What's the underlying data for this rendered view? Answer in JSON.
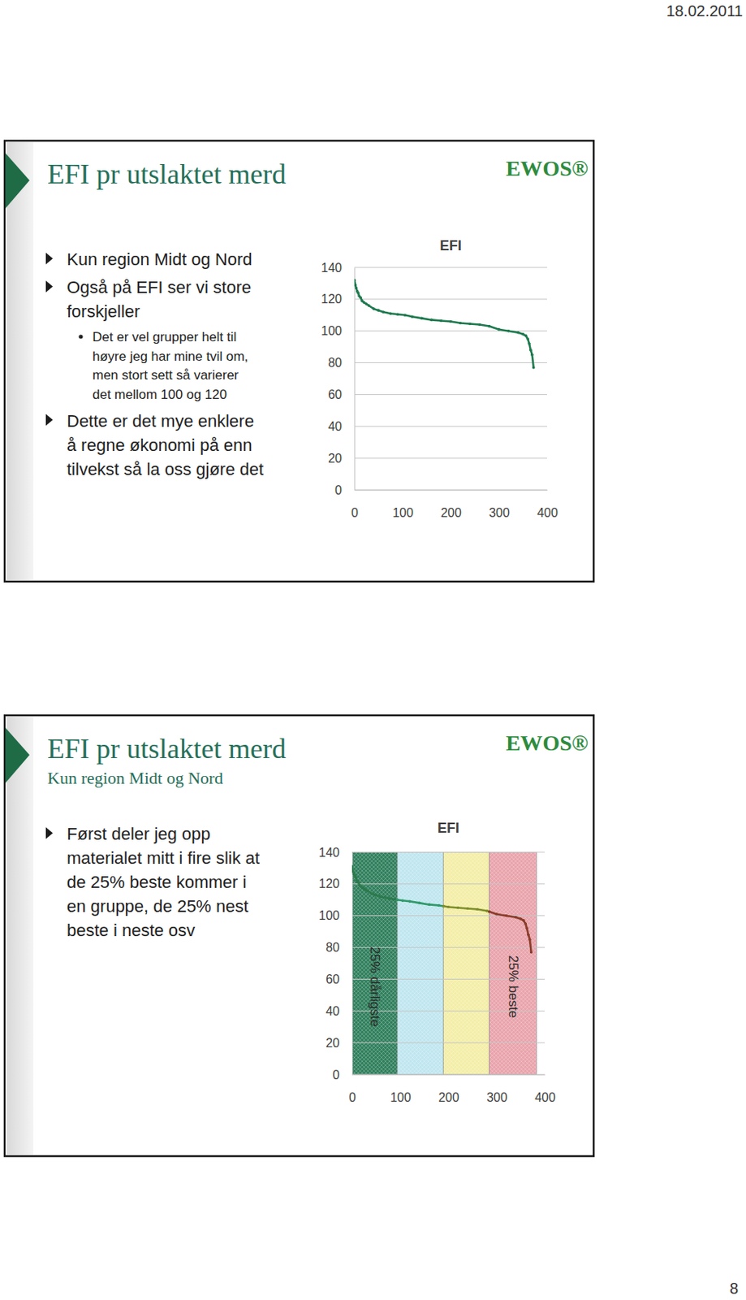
{
  "header": {
    "date": "18.02.2011"
  },
  "footer": {
    "page": "8"
  },
  "slides": [
    {
      "title": "EFI pr utslaktet merd",
      "logo": "EWOS®",
      "bullets": [
        {
          "lines": [
            "Kun region Midt og Nord"
          ]
        },
        {
          "lines": [
            "Også på EFI ser vi store",
            "forskjeller"
          ],
          "sub": [
            {
              "lines": [
                "Det er vel grupper helt til",
                "høyre jeg har mine tvil om,",
                "men stort sett så varierer",
                "det mellom 100 og 120"
              ]
            }
          ]
        },
        {
          "lines": [
            "Dette er det mye enklere",
            "å regne økonomi på enn",
            "tilvekst så la oss gjøre det"
          ]
        }
      ]
    },
    {
      "title": "EFI pr utslaktet merd",
      "subtitle": "Kun region Midt og Nord",
      "logo": "EWOS®",
      "bullets": [
        {
          "lines": [
            "Først deler jeg opp",
            "materialet mitt i fire slik at",
            "de 25% beste kommer i",
            "en gruppe, de 25% nest",
            "beste i neste osv"
          ]
        }
      ]
    }
  ],
  "chart_data": [
    {
      "type": "line",
      "title": "EFI",
      "x": [
        0,
        2,
        4,
        6,
        8,
        10,
        13,
        16,
        20,
        25,
        30,
        40,
        50,
        60,
        75,
        90,
        105,
        120,
        140,
        160,
        180,
        200,
        220,
        240,
        260,
        280,
        300,
        320,
        340,
        350,
        356,
        360,
        363,
        366,
        369,
        372
      ],
      "values": [
        132,
        129,
        127,
        125,
        124,
        122,
        121,
        119,
        118,
        117,
        116,
        114,
        113,
        112,
        111,
        110.5,
        110,
        109,
        108,
        107,
        106.5,
        106,
        105,
        104.5,
        104,
        103,
        101,
        100,
        99,
        98,
        97,
        95,
        92,
        88,
        85,
        77
      ],
      "color": "#1f7a4f",
      "marker": "circle",
      "line_style": "solid",
      "xlim": [
        0,
        400
      ],
      "xticks": [
        0,
        100,
        200,
        300,
        400
      ],
      "ylim": [
        0,
        140
      ],
      "yticks": [
        0,
        20,
        40,
        60,
        80,
        100,
        120,
        140
      ],
      "grid": true
    },
    {
      "type": "line",
      "title": "EFI",
      "series": [
        {
          "color": "#2b7a4b",
          "x": [
            0,
            2,
            4,
            6,
            8,
            10,
            13,
            16,
            20,
            25,
            30,
            40,
            50,
            60,
            75,
            94
          ],
          "values": [
            131,
            128,
            126,
            125,
            124,
            122,
            121,
            119,
            118,
            117,
            116,
            114,
            113,
            112,
            111,
            110
          ]
        },
        {
          "color": "#2f9a6a",
          "x": [
            94,
            105,
            120,
            140,
            160,
            180,
            190
          ],
          "values": [
            110,
            109.5,
            109,
            108,
            107,
            106.5,
            106
          ]
        },
        {
          "color": "#7f8f2e",
          "x": [
            190,
            200,
            220,
            240,
            260,
            280,
            285
          ],
          "values": [
            106,
            105.5,
            105,
            104.5,
            104,
            103,
            102.5
          ]
        },
        {
          "color": "#8b3d2a",
          "x": [
            285,
            300,
            320,
            340,
            350,
            356,
            360,
            363,
            366,
            369,
            372
          ],
          "values": [
            102.5,
            101,
            100,
            99,
            98,
            97,
            95,
            92,
            88,
            85,
            77
          ]
        }
      ],
      "bands": [
        {
          "x0": 0,
          "x1": 94,
          "color": "#2f7f5c",
          "label": "25% dårligste"
        },
        {
          "x0": 94,
          "x1": 190,
          "color": "#bfe6ef"
        },
        {
          "x0": 190,
          "x1": 285,
          "color": "#f3eea6"
        },
        {
          "x0": 285,
          "x1": 383,
          "color": "#e9a3ab",
          "label": "25% beste"
        }
      ],
      "marker": "circle",
      "line_style": "solid",
      "xlim": [
        0,
        400
      ],
      "xticks": [
        0,
        100,
        200,
        300,
        400
      ],
      "ylim": [
        0,
        140
      ],
      "yticks": [
        0,
        20,
        40,
        60,
        80,
        100,
        120,
        140
      ],
      "grid": true
    }
  ]
}
